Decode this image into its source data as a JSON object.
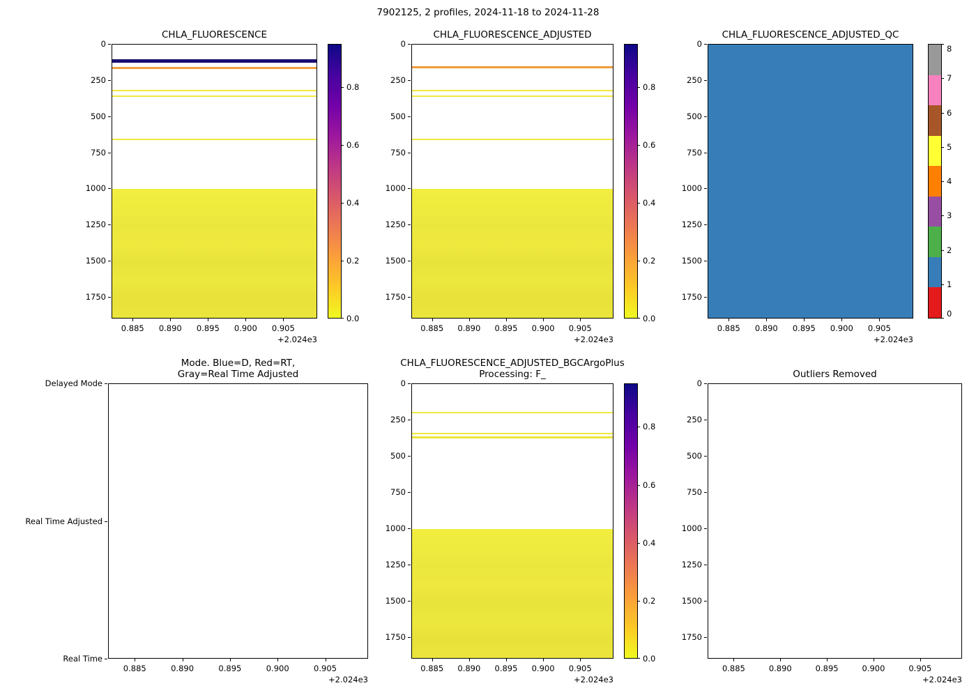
{
  "figure": {
    "title": "7902125, 2 profiles, 2024-11-18 to 2024-11-28"
  },
  "chart_data": [
    {
      "id": "chla_fluorescence",
      "type": "heatmap",
      "title": "CHLA_FLUORESCENCE",
      "x_ticks": [
        "0.885",
        "0.890",
        "0.895",
        "0.900",
        "0.905"
      ],
      "x_offset_label": "+2.024e3",
      "x_range": [
        0.8822,
        0.9095
      ],
      "y_ticks": [
        "0",
        "250",
        "500",
        "750",
        "1000",
        "1250",
        "1500",
        "1750"
      ],
      "y_range": [
        0,
        1900
      ],
      "y_axis": "depth_dbar_inverted",
      "bands": [
        {
          "depth": 100,
          "thickness_px": 5,
          "color": "#1a1070"
        },
        {
          "depth": 152,
          "thickness_px": 3,
          "color": "#f2a13f"
        },
        {
          "depth": 312,
          "thickness_px": 2,
          "color": "#f0e83d"
        },
        {
          "depth": 352,
          "thickness_px": 2,
          "color": "#f0e83d"
        },
        {
          "depth": 650,
          "thickness_px": 2,
          "color": "#f0e83d"
        }
      ],
      "deep_block": {
        "from_depth": 1000,
        "stripes": [
          "#f2ee40",
          "#efeb3e",
          "#ece73d",
          "#efe93e",
          "#e8e33b",
          "#ede83d",
          "#e7e13a",
          "#ebe53c"
        ]
      },
      "colorbar": {
        "kind": "continuous",
        "ticks": [
          "0.0",
          "0.2",
          "0.4",
          "0.6",
          "0.8"
        ],
        "vmin": 0,
        "vmax": 0.95,
        "colormap": "plasma_r",
        "gradient_top_to_bottom": [
          "#0d0887",
          "#46039f",
          "#7201a8",
          "#9c179e",
          "#bd3786",
          "#d8576b",
          "#ed7953",
          "#fb9f3a",
          "#fdca26",
          "#f0f921"
        ]
      }
    },
    {
      "id": "chla_fluorescence_adjusted",
      "type": "heatmap",
      "title": "CHLA_FLUORESCENCE_ADJUSTED",
      "x_ticks": [
        "0.885",
        "0.890",
        "0.895",
        "0.900",
        "0.905"
      ],
      "x_offset_label": "+2.024e3",
      "x_range": [
        0.8822,
        0.9095
      ],
      "y_ticks": [
        "0",
        "250",
        "500",
        "750",
        "1000",
        "1250",
        "1500",
        "1750"
      ],
      "y_range": [
        0,
        1900
      ],
      "y_axis": "depth_dbar_inverted",
      "bands": [
        {
          "depth": 150,
          "thickness_px": 3,
          "color": "#ef9b3c"
        },
        {
          "depth": 312,
          "thickness_px": 2,
          "color": "#f0e83d"
        },
        {
          "depth": 352,
          "thickness_px": 2,
          "color": "#f0e83d"
        },
        {
          "depth": 650,
          "thickness_px": 2,
          "color": "#f0e83d"
        }
      ],
      "deep_block": {
        "from_depth": 1000,
        "stripes": [
          "#f2ee40",
          "#efeb3e",
          "#ece73d",
          "#efe93e",
          "#e8e33b",
          "#ede83d",
          "#e7e13a",
          "#ebe53c"
        ]
      },
      "colorbar": {
        "kind": "continuous",
        "ticks": [
          "0.0",
          "0.2",
          "0.4",
          "0.6",
          "0.8"
        ],
        "vmin": 0,
        "vmax": 0.95,
        "colormap": "plasma_r",
        "gradient_top_to_bottom": [
          "#0d0887",
          "#46039f",
          "#7201a8",
          "#9c179e",
          "#bd3786",
          "#d8576b",
          "#ed7953",
          "#fb9f3a",
          "#fdca26",
          "#f0f921"
        ]
      }
    },
    {
      "id": "chla_fluorescence_adjusted_qc",
      "type": "heatmap",
      "title": "CHLA_FLUORESCENCE_ADJUSTED_QC",
      "x_ticks": [
        "0.885",
        "0.890",
        "0.895",
        "0.900",
        "0.905"
      ],
      "x_offset_label": "+2.024e3",
      "x_range": [
        0.8822,
        0.9095
      ],
      "y_ticks": [
        "0",
        "250",
        "500",
        "750",
        "1000",
        "1250",
        "1500",
        "1750"
      ],
      "y_range": [
        0,
        1900
      ],
      "y_axis": "depth_dbar_inverted",
      "fill": "#377eb8",
      "fill_meaning": "QC flag = 1 everywhere",
      "colorbar": {
        "kind": "discrete",
        "ticks": [
          "0",
          "1",
          "2",
          "3",
          "4",
          "5",
          "6",
          "7",
          "8"
        ],
        "colors_bottom_to_top": [
          "#e41a1c",
          "#377eb8",
          "#4daf4a",
          "#984ea3",
          "#ff7f00",
          "#ffff33",
          "#a65628",
          "#f781bf",
          "#999999"
        ]
      }
    },
    {
      "id": "mode",
      "type": "scatter",
      "empty": true,
      "title_lines": [
        "Mode. Blue=D, Red=RT,",
        "Gray=Real Time Adjusted"
      ],
      "x_ticks": [
        "0.885",
        "0.890",
        "0.895",
        "0.900",
        "0.905"
      ],
      "x_offset_label": "+2.024e3",
      "x_range": [
        0.8822,
        0.9095
      ],
      "y_categories": [
        "Delayed Mode",
        "Real Time Adjusted",
        "Real Time"
      ]
    },
    {
      "id": "chla_fluorescence_adjusted_bgcargoplus",
      "type": "heatmap",
      "title_lines": [
        "CHLA_FLUORESCENCE_ADJUSTED_BGCArgoPlus",
        "Processing: F_"
      ],
      "x_ticks": [
        "0.885",
        "0.890",
        "0.895",
        "0.900",
        "0.905"
      ],
      "x_offset_label": "+2.024e3",
      "x_range": [
        0.8822,
        0.9095
      ],
      "y_ticks": [
        "0",
        "250",
        "500",
        "750",
        "1000",
        "1250",
        "1500",
        "1750"
      ],
      "y_range": [
        0,
        1900
      ],
      "y_axis": "depth_dbar_inverted",
      "bands": [
        {
          "depth": 190,
          "thickness_px": 2,
          "color": "#f0e83d"
        },
        {
          "depth": 335,
          "thickness_px": 2,
          "color": "#f0e83d"
        },
        {
          "depth": 362,
          "thickness_px": 3,
          "color": "#ece43b"
        }
      ],
      "deep_block": {
        "from_depth": 1000,
        "stripes": [
          "#f2ee40",
          "#efeb3e",
          "#ece73d",
          "#efe93e",
          "#e8e33b",
          "#ede83d",
          "#e7e13a",
          "#ebe53c"
        ]
      },
      "colorbar": {
        "kind": "continuous",
        "ticks": [
          "0.0",
          "0.2",
          "0.4",
          "0.6",
          "0.8"
        ],
        "vmin": 0,
        "vmax": 0.95,
        "colormap": "plasma_r",
        "gradient_top_to_bottom": [
          "#0d0887",
          "#46039f",
          "#7201a8",
          "#9c179e",
          "#bd3786",
          "#d8576b",
          "#ed7953",
          "#fb9f3a",
          "#fdca26",
          "#f0f921"
        ]
      }
    },
    {
      "id": "outliers_removed",
      "type": "scatter",
      "empty": true,
      "title": "Outliers Removed",
      "x_ticks": [
        "0.885",
        "0.890",
        "0.895",
        "0.900",
        "0.905"
      ],
      "x_offset_label": "+2.024e3",
      "x_range": [
        0.8822,
        0.9095
      ],
      "y_ticks": [
        "0",
        "250",
        "500",
        "750",
        "1000",
        "1250",
        "1500",
        "1750"
      ],
      "y_range": [
        0,
        1900
      ],
      "y_axis": "depth_dbar_inverted"
    }
  ]
}
